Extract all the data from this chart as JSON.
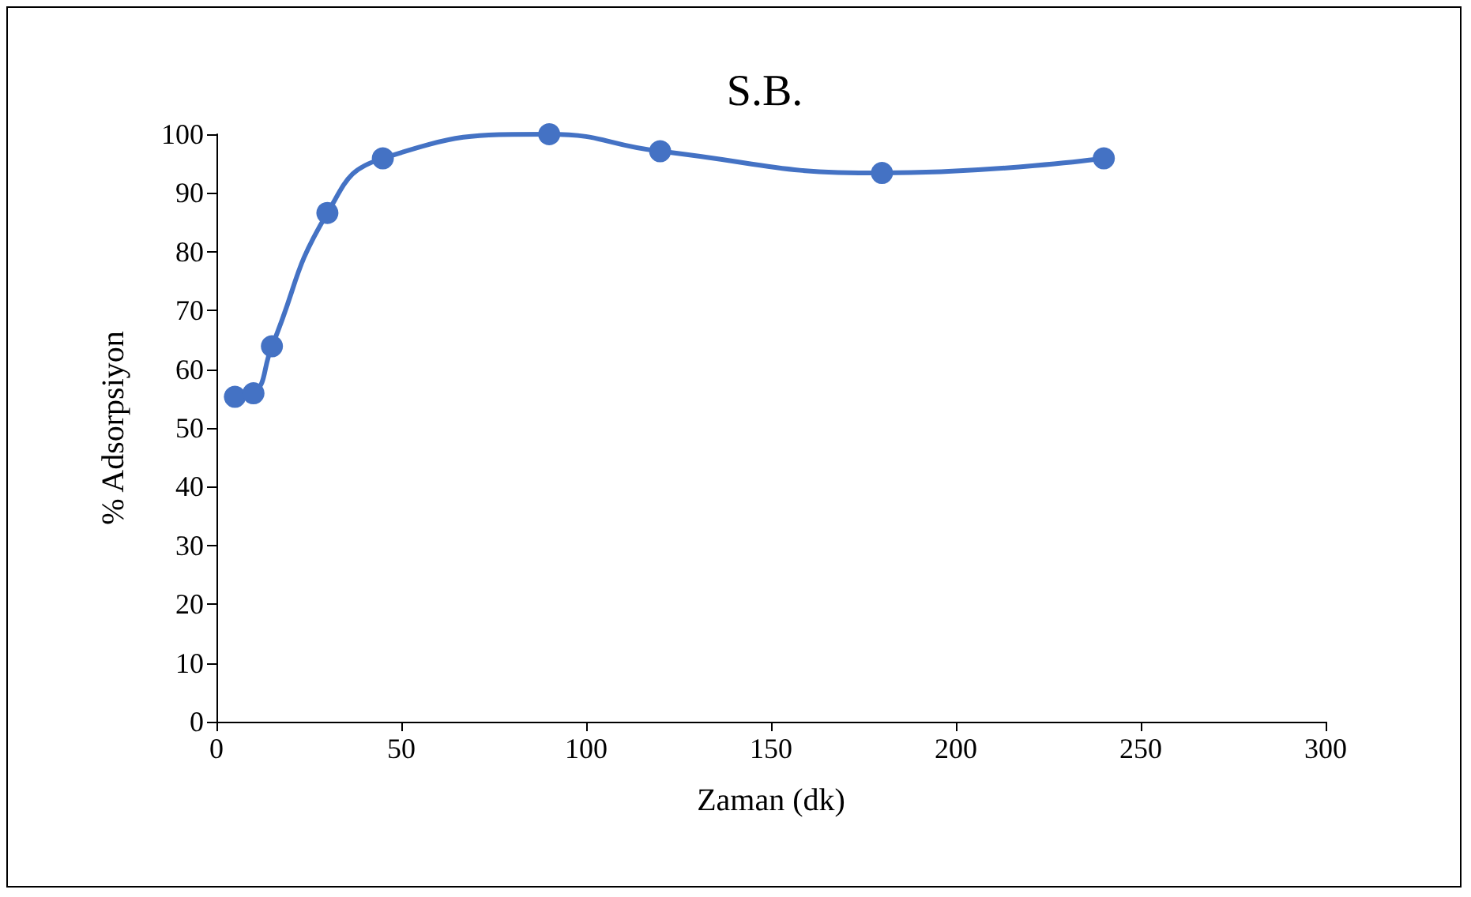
{
  "chart_data": {
    "type": "line",
    "title": "S.B.",
    "xlabel": "Zaman (dk)",
    "ylabel": "% Adsorpsiyon",
    "series": [
      {
        "color": "#4472c4",
        "x": [
          5,
          10,
          15,
          30,
          45,
          90,
          120,
          180,
          240
        ],
        "values": [
          55.3,
          55.9,
          63.9,
          86.6,
          95.9,
          100,
          97.1,
          93.4,
          95.9
        ]
      }
    ],
    "xlim": [
      0,
      300
    ],
    "xticks": [
      0,
      50,
      100,
      150,
      200,
      250,
      300
    ],
    "ylim": [
      0,
      100
    ],
    "yticks": [
      0,
      10,
      20,
      30,
      40,
      50,
      60,
      70,
      80,
      90,
      100
    ],
    "grid": false,
    "marker": "circle",
    "line_style": "solid"
  }
}
